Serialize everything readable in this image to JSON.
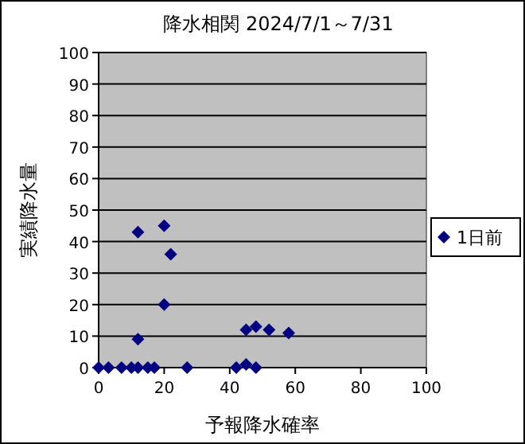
{
  "chart_data": {
    "type": "scatter",
    "title": "降水相関  2024/7/1～7/31",
    "xlabel": "予報降水確率",
    "ylabel": "実績降水量",
    "xlim": [
      0,
      100
    ],
    "ylim": [
      0,
      100
    ],
    "xticks": [
      0,
      20,
      40,
      60,
      80,
      100
    ],
    "yticks": [
      0,
      10,
      20,
      30,
      40,
      50,
      60,
      70,
      80,
      90,
      100
    ],
    "grid": "y",
    "legend": "right",
    "marker": "diamond",
    "series": [
      {
        "name": "1日前",
        "color": "#000080",
        "x": [
          0,
          3,
          7,
          10,
          12,
          15,
          17,
          27,
          42,
          45,
          48,
          12,
          12,
          20,
          20,
          22,
          45,
          48,
          52,
          58
        ],
        "values": [
          0,
          0,
          0,
          0,
          0,
          0,
          0,
          0,
          0,
          1,
          0,
          43,
          9,
          45,
          20,
          36,
          12,
          13,
          12,
          11
        ]
      }
    ]
  }
}
